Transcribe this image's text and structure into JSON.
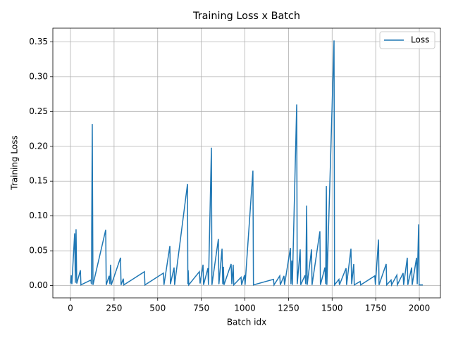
{
  "chart_data": {
    "type": "line",
    "title": "Training Loss x Batch",
    "xlabel": "Batch idx",
    "ylabel": "Training Loss",
    "x": [
      0,
      4,
      8,
      24,
      28,
      32,
      36,
      57,
      60,
      117,
      120,
      125,
      129,
      202,
      205,
      222,
      226,
      230,
      234,
      287,
      290,
      303,
      306,
      424,
      427,
      533,
      536,
      570,
      573,
      594,
      597,
      671,
      673,
      675,
      678,
      739,
      743,
      760,
      763,
      788,
      791,
      808,
      811,
      848,
      851,
      869,
      873,
      877,
      880,
      921,
      925,
      933,
      936,
      978,
      981,
      998,
      1001,
      1046,
      1049,
      1164,
      1167,
      1200,
      1203,
      1224,
      1227,
      1261,
      1264,
      1269,
      1272,
      1297,
      1300,
      1317,
      1320,
      1345,
      1349,
      1354,
      1357,
      1382,
      1385,
      1430,
      1433,
      1459,
      1463,
      1467,
      1470,
      1511,
      1514,
      1539,
      1542,
      1580,
      1583,
      1608,
      1612,
      1624,
      1627,
      1661,
      1664,
      1745,
      1748,
      1766,
      1769,
      1810,
      1813,
      1838,
      1841,
      1871,
      1874,
      1907,
      1910,
      1931,
      1934,
      1956,
      1959,
      1984,
      1988,
      1996,
      1999,
      2020
    ],
    "series": [
      {
        "name": "Loss",
        "color": "#1f77b4",
        "values": [
          0.003,
          0.015,
          0.002,
          0.075,
          0.004,
          0.081,
          0.003,
          0.022,
          0.001,
          0.008,
          0.002,
          0.232,
          0.001,
          0.08,
          0.001,
          0.014,
          0.002,
          0.03,
          0.001,
          0.04,
          0.001,
          0.01,
          0.001,
          0.02,
          0.001,
          0.018,
          0.001,
          0.057,
          0.002,
          0.026,
          0.001,
          0.146,
          0.002,
          0.022,
          0.001,
          0.02,
          0.003,
          0.03,
          0.001,
          0.025,
          0.001,
          0.198,
          0.001,
          0.067,
          0.002,
          0.053,
          0.002,
          0.027,
          0.001,
          0.031,
          0.002,
          0.03,
          0.001,
          0.012,
          0.001,
          0.015,
          0.001,
          0.165,
          0.001,
          0.009,
          0.001,
          0.014,
          0.001,
          0.014,
          0.001,
          0.054,
          0.002,
          0.036,
          0.001,
          0.26,
          0.002,
          0.052,
          0.001,
          0.015,
          0.002,
          0.115,
          0.001,
          0.052,
          0.001,
          0.078,
          0.001,
          0.026,
          0.002,
          0.143,
          0.001,
          0.352,
          0.001,
          0.009,
          0.001,
          0.025,
          0.001,
          0.053,
          0.002,
          0.031,
          0.001,
          0.006,
          0.001,
          0.014,
          0.001,
          0.066,
          0.001,
          0.031,
          0.001,
          0.008,
          0.001,
          0.015,
          0.001,
          0.018,
          0.001,
          0.04,
          0.001,
          0.026,
          0.001,
          0.04,
          0.002,
          0.088,
          0.001,
          0.001
        ]
      }
    ],
    "xlim": [
      -101,
      2121
    ],
    "ylim": [
      -0.0176,
      0.3696
    ],
    "xticks": [
      0,
      250,
      500,
      750,
      1000,
      1250,
      1500,
      1750,
      2000
    ],
    "yticks": [
      {
        "value": 0,
        "label": "0.00"
      },
      {
        "value": 0.05,
        "label": "0.05"
      },
      {
        "value": 0.1,
        "label": "0.10"
      },
      {
        "value": 0.15,
        "label": "0.15"
      },
      {
        "value": 0.2,
        "label": "0.20"
      },
      {
        "value": 0.25,
        "label": "0.25"
      },
      {
        "value": 0.3,
        "label": "0.30"
      },
      {
        "value": 0.35,
        "label": "0.35"
      }
    ],
    "grid": true,
    "legend": "upper right"
  }
}
